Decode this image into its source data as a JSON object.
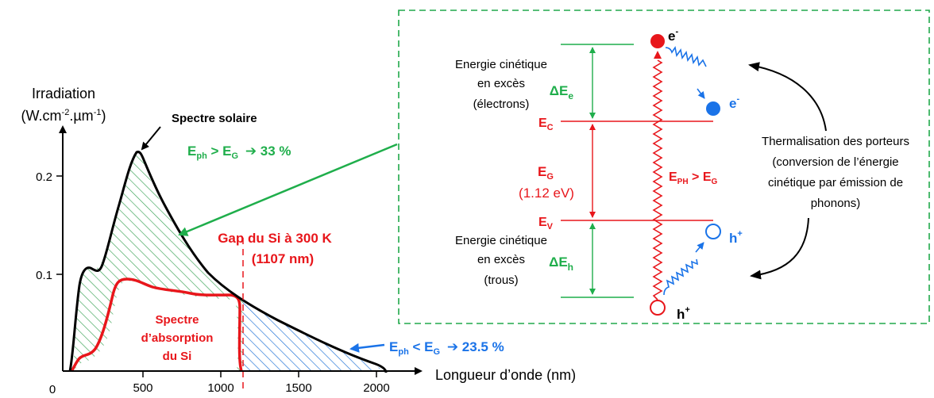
{
  "axes": {
    "y_title_1": "Irradiation",
    "y_title_2": "(W.cm",
    "y_title_exp1": "-2",
    "y_title_3": ".µm",
    "y_title_exp2": "-1",
    "y_title_4": ")",
    "x_title": "Longueur d’onde (nm)",
    "y_ticks": [
      "0.2",
      "0.1",
      "0"
    ],
    "x_ticks": [
      "500",
      "1000",
      "1500",
      "2000"
    ]
  },
  "labels": {
    "spectre_solaire": "Spectre solaire",
    "absorption_1": "Spectre",
    "absorption_2": "d’absorption",
    "absorption_3": "du Si",
    "gap_1": "Gap du Si à 300 K",
    "gap_2": "(1107 nm)",
    "above_gap": {
      "e": "E",
      "ph": "ph",
      "gt": " > E",
      "g": "G",
      "value": "33 %"
    },
    "below_gap": {
      "e": "E",
      "ph": "ph",
      "lt": " < E",
      "g": "G",
      "value": "23.5 %"
    }
  },
  "band_diagram": {
    "kin_e_1": "Energie cinétique",
    "kin_e_2": "en excès",
    "kin_e_3": "(électrons)",
    "kin_h_1": "Energie cinétique",
    "kin_h_2": "en excès",
    "kin_h_3": "(trous)",
    "delta_e": "ΔE",
    "delta_e_sub": "e",
    "delta_h": "ΔE",
    "delta_h_sub": "h",
    "ec": "E",
    "ec_sub": "C",
    "ev": "E",
    "ev_sub": "V",
    "eg": "E",
    "eg_sub": "G",
    "eg_value": "(1.12 eV)",
    "eph": "E",
    "eph_sub": "PH",
    "eph_rel": " > E",
    "eph_rel_sub": "G",
    "electron": "e",
    "electron_sup": "-",
    "hole": "h",
    "hole_sup": "+",
    "thermal_1": "Thermalisation des porteurs",
    "thermal_2": "(conversion de l’énergie",
    "thermal_3": "cinétique par émission de",
    "thermal_4": "phonons)"
  },
  "colors": {
    "red": "#e8161b",
    "green": "#1fae4b",
    "blue": "#1a73e8",
    "black": "#000000",
    "dashed_box": "#21a94b"
  }
}
